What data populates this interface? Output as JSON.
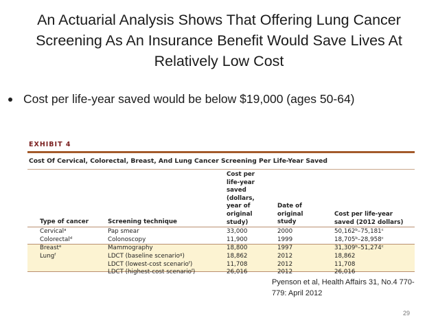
{
  "slide": {
    "title_lines": [
      "An Actuarial Analysis Shows That Offering Lung Cancer",
      "Screening As An Insurance Benefit Would Save Lives At",
      "Relatively Low Cost"
    ],
    "bullet": "Cost per life-year saved would be below $19,000 (ages 50-64)",
    "citation": "Pyenson et al, Health Affairs 31, No.4 770-779: April 2012",
    "page_number": "29"
  },
  "exhibit": {
    "label": "EXHIBIT 4",
    "title": "Cost Of Cervical, Colorectal, Breast, And Lung Cancer Screening Per Life-Year Saved",
    "headers": {
      "type": [
        "Type of cancer"
      ],
      "technique": [
        "Screening technique"
      ],
      "cost": [
        "Cost per",
        "life-year",
        "saved",
        "(dollars,",
        "year of",
        "original",
        "study)"
      ],
      "date": [
        "Date of",
        "original",
        "study"
      ],
      "cost2012": [
        "Cost per life-year",
        "saved (2012 dollars)"
      ]
    },
    "rows": [
      {
        "type": "Cervical",
        "type_note": "a",
        "technique": "Pap smear",
        "technique_note": "",
        "cost": "33,000",
        "date": "2000",
        "cost2012": "50,162",
        "cost2012_low_note": "b",
        "cost2012_high": "75,181",
        "cost2012_high_note": "c"
      },
      {
        "type": "Colorectal",
        "type_note": "d",
        "technique": "Colonoscopy",
        "technique_note": "",
        "cost": "11,900",
        "date": "1999",
        "cost2012": "18,705",
        "cost2012_low_note": "b",
        "cost2012_high": "28,958",
        "cost2012_high_note": "c"
      },
      {
        "type": "Breast",
        "type_note": "e",
        "technique": "Mammography",
        "technique_note": "",
        "cost": "18,800",
        "date": "1997",
        "cost2012": "31,309",
        "cost2012_low_note": "b",
        "cost2012_high": "51,274",
        "cost2012_high_note": "c"
      },
      {
        "type": "Lung",
        "type_note": "f",
        "technique": "LDCT (baseline scenario",
        "technique_note": "g",
        "cost": "18,862",
        "date": "2012",
        "cost2012": "18,862",
        "cost2012_low_note": "",
        "cost2012_high": "",
        "cost2012_high_note": ""
      },
      {
        "type": "",
        "type_note": "",
        "technique": "LDCT (lowest-cost scenario",
        "technique_note": "f",
        "cost": "11,708",
        "date": "2012",
        "cost2012": "11,708",
        "cost2012_low_note": "",
        "cost2012_high": "",
        "cost2012_high_note": ""
      },
      {
        "type": "",
        "type_note": "",
        "technique": "LDCT (highest-cost scenario",
        "technique_note": "f",
        "cost": "26,016",
        "date": "2012",
        "cost2012": "26,016",
        "cost2012_low_note": "",
        "cost2012_high": "",
        "cost2012_high_note": ""
      }
    ]
  }
}
